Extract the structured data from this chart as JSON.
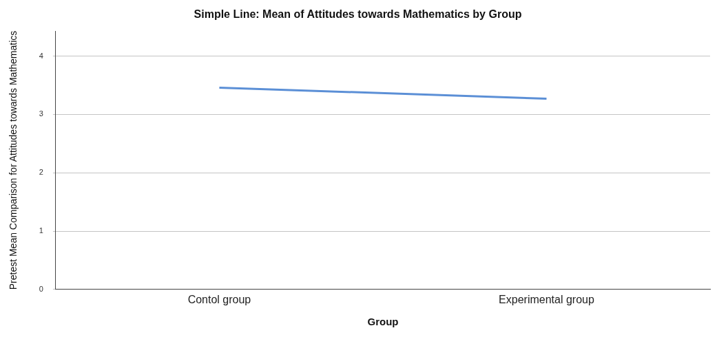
{
  "chart_data": {
    "type": "line",
    "title": "Simple Line: Mean of Attitudes towards Mathematics by Group",
    "xlabel": "Group",
    "ylabel": "Pretest Mean Comparison for Attitudes towards Mathematics",
    "categories": [
      "Contol group",
      "Experimental group"
    ],
    "series": [
      {
        "color": "#5b8fd6",
        "values": [
          3.46,
          3.27
        ]
      }
    ],
    "ylim": [
      0,
      4.43
    ],
    "yticks": [
      0,
      1,
      2,
      3,
      4
    ],
    "grid": "y",
    "legend": false,
    "marker": "none",
    "line_style": "solid"
  }
}
